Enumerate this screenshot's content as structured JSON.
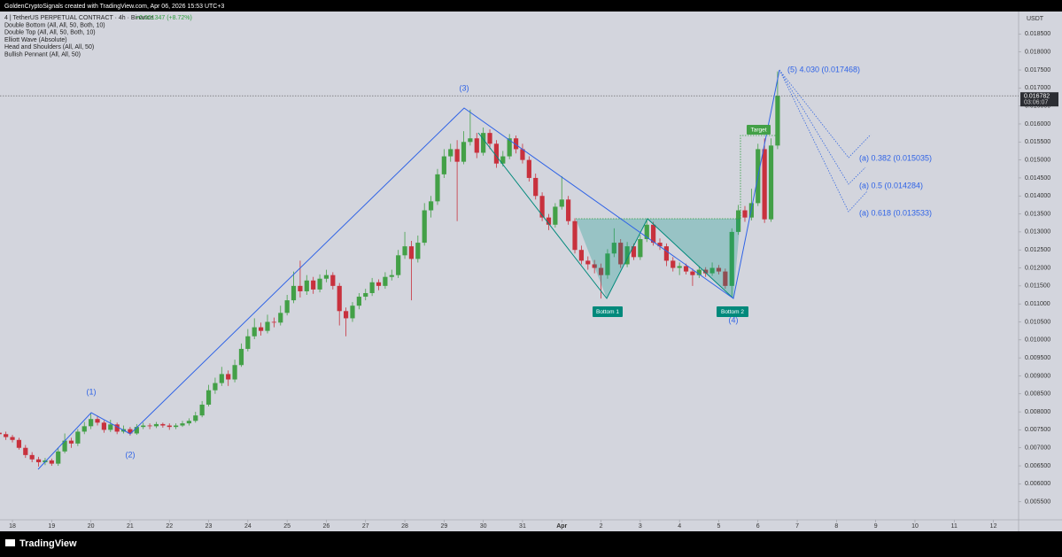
{
  "header": "GoldenCryptoSignals created with TradingView.com, Apr 06, 2026 15:53 UTC+3",
  "footer": "TradingView",
  "chart_data": {
    "type": "candlestick",
    "title": "4 | TetherUS PERPETUAL CONTRACT · 4h · Binance",
    "change": "+0.001347 (+8.72%)",
    "indicators": [
      "Double Bottom (All, All, 50, Both, 10)",
      "Double Top (All, All, 50, Both, 10)",
      "Elliott Wave (Absolute)",
      "Head and Shoulders (All, All, 50)",
      "Bullish Pennant (All, All, 50)"
    ],
    "y_axis_unit": "USDT",
    "colors": {
      "up": "#43a047",
      "down": "#c8313d"
    },
    "last_price": 0.016782,
    "countdown": "03:06:07",
    "elliott_labels": [
      "(1)",
      "(2)",
      "(3)",
      "(4)",
      "(5) 4.030 (0.017468)"
    ],
    "fib_labels": [
      "(a) 0.382 (0.015035)",
      "(a) 0.5 (0.014284)",
      "(a) 0.618 (0.013533)"
    ],
    "pattern_labels": [
      "Bottom 1",
      "Bottom 2",
      "Target"
    ],
    "xlim": [
      -7.6,
      615.4
    ],
    "ylim": [
      0.005,
      0.0191
    ],
    "yticks": [
      {
        "value": 0.0055,
        "label": "0.005500"
      },
      {
        "value": 0.006,
        "label": "0.006000"
      },
      {
        "value": 0.0065,
        "label": "0.006500"
      },
      {
        "value": 0.007,
        "label": "0.007000"
      },
      {
        "value": 0.0075,
        "label": "0.007500"
      },
      {
        "value": 0.008,
        "label": "0.008000"
      },
      {
        "value": 0.0085,
        "label": "0.008500"
      },
      {
        "value": 0.009,
        "label": "0.009000"
      },
      {
        "value": 0.0095,
        "label": "0.009500"
      },
      {
        "value": 0.01,
        "label": "0.010000"
      },
      {
        "value": 0.0105,
        "label": "0.010500"
      },
      {
        "value": 0.011,
        "label": "0.011000"
      },
      {
        "value": 0.0115,
        "label": "0.011500"
      },
      {
        "value": 0.012,
        "label": "0.012000"
      },
      {
        "value": 0.0125,
        "label": "0.012500"
      },
      {
        "value": 0.013,
        "label": "0.013000"
      },
      {
        "value": 0.0135,
        "label": "0.013500"
      },
      {
        "value": 0.014,
        "label": "0.014000"
      },
      {
        "value": 0.0145,
        "label": "0.014500"
      },
      {
        "value": 0.015,
        "label": "0.015000"
      },
      {
        "value": 0.0155,
        "label": "0.015500"
      },
      {
        "value": 0.016,
        "label": "0.016000"
      },
      {
        "value": 0.0165,
        "label": "0.016500"
      },
      {
        "value": 0.017,
        "label": "0.017000"
      },
      {
        "value": 0.0175,
        "label": "0.017500"
      },
      {
        "value": 0.018,
        "label": "0.018000"
      },
      {
        "value": 0.0185,
        "label": "0.018500"
      }
    ],
    "xticks": [
      {
        "value": 0,
        "label": "18"
      },
      {
        "value": 24,
        "label": "19"
      },
      {
        "value": 48,
        "label": "20"
      },
      {
        "value": 72,
        "label": "21"
      },
      {
        "value": 96,
        "label": "22"
      },
      {
        "value": 120,
        "label": "23"
      },
      {
        "value": 144,
        "label": "24"
      },
      {
        "value": 168,
        "label": "25"
      },
      {
        "value": 192,
        "label": "26"
      },
      {
        "value": 216,
        "label": "27"
      },
      {
        "value": 240,
        "label": "28"
      },
      {
        "value": 264,
        "label": "29"
      },
      {
        "value": 288,
        "label": "30"
      },
      {
        "value": 312,
        "label": "31"
      },
      {
        "value": 336,
        "label": "Apr"
      },
      {
        "value": 360,
        "label": "2"
      },
      {
        "value": 384,
        "label": "3"
      },
      {
        "value": 408,
        "label": "4"
      },
      {
        "value": 432,
        "label": "5"
      },
      {
        "value": 456,
        "label": "6"
      },
      {
        "value": 480,
        "label": "7"
      },
      {
        "value": 504,
        "label": "8"
      },
      {
        "value": 528,
        "label": "9"
      },
      {
        "value": 552,
        "label": "10"
      },
      {
        "value": 576,
        "label": "11"
      },
      {
        "value": 600,
        "label": "12"
      }
    ],
    "x": [
      -8,
      -4,
      0,
      4,
      8,
      12,
      16,
      20,
      24,
      28,
      32,
      36,
      40,
      44,
      48,
      52,
      56,
      60,
      64,
      68,
      72,
      76,
      80,
      84,
      88,
      92,
      96,
      100,
      104,
      108,
      112,
      116,
      120,
      124,
      128,
      132,
      136,
      140,
      144,
      148,
      152,
      156,
      160,
      164,
      168,
      172,
      176,
      180,
      184,
      188,
      192,
      196,
      200,
      204,
      208,
      212,
      216,
      220,
      224,
      228,
      232,
      236,
      240,
      244,
      248,
      252,
      256,
      260,
      264,
      268,
      272,
      276,
      280,
      284,
      288,
      292,
      296,
      300,
      304,
      308,
      312,
      316,
      320,
      324,
      328,
      332,
      336,
      340,
      344,
      348,
      352,
      356,
      360,
      364,
      368,
      372,
      376,
      380,
      384,
      388,
      392,
      396,
      400,
      404,
      408,
      412,
      416,
      420,
      424,
      428,
      432,
      436,
      440,
      444,
      448,
      452,
      456,
      460,
      464,
      468
    ],
    "ohlc": [
      [
        0.00742,
        0.0075,
        0.0073,
        0.00738
      ],
      [
        0.00738,
        0.00745,
        0.00722,
        0.0073
      ],
      [
        0.0073,
        0.00736,
        0.00715,
        0.00722
      ],
      [
        0.00722,
        0.00728,
        0.00695,
        0.007
      ],
      [
        0.007,
        0.00708,
        0.00672,
        0.0068
      ],
      [
        0.0068,
        0.00688,
        0.0066,
        0.00668
      ],
      [
        0.00668,
        0.00675,
        0.00648,
        0.0066
      ],
      [
        0.0066,
        0.00672,
        0.00652,
        0.00665
      ],
      [
        0.00665,
        0.0067,
        0.0065,
        0.00656
      ],
      [
        0.00656,
        0.007,
        0.0065,
        0.0069
      ],
      [
        0.0069,
        0.0074,
        0.00685,
        0.0072
      ],
      [
        0.0072,
        0.00728,
        0.007,
        0.00712
      ],
      [
        0.00712,
        0.00752,
        0.00705,
        0.00745
      ],
      [
        0.00745,
        0.00772,
        0.00738,
        0.0076
      ],
      [
        0.0076,
        0.00795,
        0.00752,
        0.0078
      ],
      [
        0.0078,
        0.00788,
        0.00762,
        0.0077
      ],
      [
        0.0077,
        0.00776,
        0.00742,
        0.0075
      ],
      [
        0.0075,
        0.00778,
        0.00744,
        0.00765
      ],
      [
        0.00765,
        0.0077,
        0.00738,
        0.00745
      ],
      [
        0.00745,
        0.00762,
        0.0074,
        0.00752
      ],
      [
        0.00752,
        0.00758,
        0.00734,
        0.0074
      ],
      [
        0.0074,
        0.00766,
        0.00736,
        0.00758
      ],
      [
        0.00758,
        0.0077,
        0.00752,
        0.00762
      ],
      [
        0.00762,
        0.00768,
        0.00752,
        0.0076
      ],
      [
        0.0076,
        0.00772,
        0.00755,
        0.00766
      ],
      [
        0.00766,
        0.0077,
        0.00756,
        0.00762
      ],
      [
        0.00762,
        0.00768,
        0.0075,
        0.00758
      ],
      [
        0.00758,
        0.00768,
        0.00752,
        0.00762
      ],
      [
        0.00762,
        0.00775,
        0.00758,
        0.00768
      ],
      [
        0.00768,
        0.00782,
        0.00762,
        0.00775
      ],
      [
        0.00775,
        0.008,
        0.0077,
        0.0079
      ],
      [
        0.0079,
        0.0083,
        0.00785,
        0.0082
      ],
      [
        0.0082,
        0.00875,
        0.00815,
        0.0086
      ],
      [
        0.0086,
        0.00895,
        0.0085,
        0.0088
      ],
      [
        0.0088,
        0.00925,
        0.00872,
        0.00905
      ],
      [
        0.00905,
        0.00915,
        0.00872,
        0.0089
      ],
      [
        0.0089,
        0.00945,
        0.00882,
        0.0093
      ],
      [
        0.0093,
        0.0099,
        0.00925,
        0.00975
      ],
      [
        0.00975,
        0.0103,
        0.00968,
        0.0101
      ],
      [
        0.0101,
        0.0106,
        0.01002,
        0.01035
      ],
      [
        0.01035,
        0.01048,
        0.01012,
        0.01025
      ],
      [
        0.01025,
        0.0107,
        0.01018,
        0.0105
      ],
      [
        0.0105,
        0.01062,
        0.01035,
        0.01048
      ],
      [
        0.01048,
        0.01095,
        0.0104,
        0.01075
      ],
      [
        0.01075,
        0.01125,
        0.01068,
        0.0111
      ],
      [
        0.0111,
        0.0119,
        0.01102,
        0.0115
      ],
      [
        0.0115,
        0.0122,
        0.01118,
        0.01135
      ],
      [
        0.01135,
        0.0118,
        0.01125,
        0.01165
      ],
      [
        0.01165,
        0.01175,
        0.01128,
        0.0114
      ],
      [
        0.0114,
        0.01182,
        0.01132,
        0.0117
      ],
      [
        0.0117,
        0.01195,
        0.0116,
        0.0118
      ],
      [
        0.0118,
        0.01188,
        0.0114,
        0.0115
      ],
      [
        0.0115,
        0.01158,
        0.0104,
        0.0108
      ],
      [
        0.0108,
        0.0109,
        0.0101,
        0.0106
      ],
      [
        0.0106,
        0.01105,
        0.0105,
        0.01095
      ],
      [
        0.01095,
        0.0113,
        0.01085,
        0.0112
      ],
      [
        0.0112,
        0.01142,
        0.0111,
        0.0113
      ],
      [
        0.0113,
        0.01172,
        0.01122,
        0.0116
      ],
      [
        0.0116,
        0.01168,
        0.01138,
        0.0115
      ],
      [
        0.0115,
        0.01188,
        0.01142,
        0.01175
      ],
      [
        0.01175,
        0.01195,
        0.01165,
        0.0118
      ],
      [
        0.0118,
        0.0125,
        0.01172,
        0.01235
      ],
      [
        0.01235,
        0.013,
        0.01225,
        0.0126
      ],
      [
        0.0126,
        0.01275,
        0.0111,
        0.01225
      ],
      [
        0.01225,
        0.0129,
        0.01215,
        0.0127
      ],
      [
        0.0127,
        0.0138,
        0.01262,
        0.0136
      ],
      [
        0.0136,
        0.014,
        0.0134,
        0.01385
      ],
      [
        0.01385,
        0.01475,
        0.01375,
        0.0146
      ],
      [
        0.0146,
        0.0153,
        0.0145,
        0.0151
      ],
      [
        0.0151,
        0.01545,
        0.01495,
        0.0153
      ],
      [
        0.0153,
        0.01555,
        0.0133,
        0.01495
      ],
      [
        0.01495,
        0.0158,
        0.01488,
        0.0155
      ],
      [
        0.0155,
        0.0164,
        0.0154,
        0.0156
      ],
      [
        0.0156,
        0.01575,
        0.01505,
        0.0152
      ],
      [
        0.0152,
        0.0159,
        0.01512,
        0.01575
      ],
      [
        0.01575,
        0.01585,
        0.0153,
        0.01545
      ],
      [
        0.01545,
        0.01555,
        0.01478,
        0.0149
      ],
      [
        0.0149,
        0.01525,
        0.01482,
        0.0151
      ],
      [
        0.0151,
        0.01572,
        0.01502,
        0.0156
      ],
      [
        0.0156,
        0.01568,
        0.01518,
        0.0153
      ],
      [
        0.0153,
        0.01545,
        0.0149,
        0.015
      ],
      [
        0.015,
        0.0151,
        0.0144,
        0.0145
      ],
      [
        0.0145,
        0.01462,
        0.0139,
        0.014
      ],
      [
        0.014,
        0.0141,
        0.0133,
        0.0134
      ],
      [
        0.0134,
        0.0135,
        0.01305,
        0.0132
      ],
      [
        0.0132,
        0.0138,
        0.01312,
        0.0137
      ],
      [
        0.0137,
        0.01455,
        0.01362,
        0.0139
      ],
      [
        0.0139,
        0.014,
        0.0132,
        0.0133
      ],
      [
        0.0133,
        0.01338,
        0.0124,
        0.0125
      ],
      [
        0.0125,
        0.01262,
        0.0121,
        0.0122
      ],
      [
        0.0122,
        0.01232,
        0.01195,
        0.0121
      ],
      [
        0.0121,
        0.01222,
        0.01185,
        0.012
      ],
      [
        0.012,
        0.01212,
        0.01115,
        0.0118
      ],
      [
        0.0118,
        0.01252,
        0.0117,
        0.0124
      ],
      [
        0.0124,
        0.0131,
        0.0123,
        0.0127
      ],
      [
        0.0127,
        0.0128,
        0.012,
        0.0121
      ],
      [
        0.0121,
        0.01272,
        0.01202,
        0.0126
      ],
      [
        0.0126,
        0.01268,
        0.01222,
        0.0123
      ],
      [
        0.0123,
        0.01292,
        0.01222,
        0.0128
      ],
      [
        0.0128,
        0.01335,
        0.01272,
        0.0132
      ],
      [
        0.0132,
        0.01328,
        0.01262,
        0.0127
      ],
      [
        0.0127,
        0.01282,
        0.0125,
        0.0126
      ],
      [
        0.0126,
        0.01268,
        0.01205,
        0.0122
      ],
      [
        0.0122,
        0.0123,
        0.0119,
        0.012
      ],
      [
        0.012,
        0.01215,
        0.0118,
        0.01205
      ],
      [
        0.01205,
        0.01212,
        0.01182,
        0.0119
      ],
      [
        0.0119,
        0.01198,
        0.0115,
        0.0118
      ],
      [
        0.0118,
        0.01205,
        0.01172,
        0.01195
      ],
      [
        0.01195,
        0.01202,
        0.01175,
        0.01185
      ],
      [
        0.01185,
        0.01215,
        0.01178,
        0.012
      ],
      [
        0.012,
        0.01208,
        0.01182,
        0.0119
      ],
      [
        0.0119,
        0.01198,
        0.01142,
        0.0115
      ],
      [
        0.0115,
        0.0131,
        0.0112,
        0.013
      ],
      [
        0.013,
        0.01375,
        0.01292,
        0.0136
      ],
      [
        0.0136,
        0.01372,
        0.01328,
        0.0134
      ],
      [
        0.0134,
        0.0142,
        0.01332,
        0.0138
      ],
      [
        0.0138,
        0.01545,
        0.01372,
        0.0153
      ],
      [
        0.0153,
        0.0156,
        0.01325,
        0.01335
      ],
      [
        0.01335,
        0.0156,
        0.01328,
        0.0154
      ],
      [
        0.0154,
        0.01746,
        0.0153,
        0.01678
      ]
    ]
  }
}
